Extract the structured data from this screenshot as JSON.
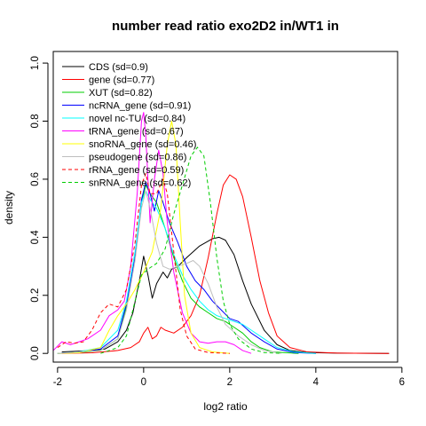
{
  "chart_data": {
    "type": "line",
    "title": "number read ratio exo2D2 in/WT1 in",
    "xlabel": "log2 ratio",
    "ylabel": "density",
    "xlim": [
      -2.1,
      5.9
    ],
    "ylim": [
      -0.03,
      1.04
    ],
    "xticks": [
      -2,
      0,
      2,
      4,
      6
    ],
    "yticks": [
      0.0,
      0.2,
      0.4,
      0.6,
      0.8,
      1.0
    ],
    "tick_labels_x": [
      "-2",
      "0",
      "2",
      "4",
      "6"
    ],
    "tick_labels_y": [
      "0.0",
      "0.2",
      "0.4",
      "0.6",
      "0.8",
      "1.0"
    ],
    "legend_position": "top-left",
    "series": [
      {
        "name": "CDS (sd=0.9)",
        "color": "#000000",
        "dash": "solid",
        "points": [
          [
            -1.9,
            0.005
          ],
          [
            -1.5,
            0.008
          ],
          [
            -1.2,
            0.01
          ],
          [
            -0.9,
            0.015
          ],
          [
            -0.6,
            0.04
          ],
          [
            -0.4,
            0.08
          ],
          [
            -0.25,
            0.14
          ],
          [
            -0.1,
            0.25
          ],
          [
            0,
            0.335
          ],
          [
            0.1,
            0.27
          ],
          [
            0.2,
            0.19
          ],
          [
            0.3,
            0.24
          ],
          [
            0.45,
            0.28
          ],
          [
            0.55,
            0.26
          ],
          [
            0.65,
            0.29
          ],
          [
            0.8,
            0.3
          ],
          [
            1.0,
            0.33
          ],
          [
            1.3,
            0.37
          ],
          [
            1.6,
            0.395
          ],
          [
            1.75,
            0.4
          ],
          [
            1.9,
            0.39
          ],
          [
            2.1,
            0.34
          ],
          [
            2.3,
            0.25
          ],
          [
            2.5,
            0.17
          ],
          [
            2.8,
            0.08
          ],
          [
            3.1,
            0.03
          ],
          [
            3.4,
            0.01
          ],
          [
            3.8,
            0.003
          ],
          [
            4.5,
            0.001
          ],
          [
            5.7,
            0.0
          ]
        ]
      },
      {
        "name": "gene (sd=0.77)",
        "color": "#ff0000",
        "dash": "solid",
        "points": [
          [
            -1.9,
            0.0
          ],
          [
            -1.2,
            0.002
          ],
          [
            -0.6,
            0.01
          ],
          [
            -0.3,
            0.02
          ],
          [
            -0.1,
            0.04
          ],
          [
            0,
            0.07
          ],
          [
            0.1,
            0.09
          ],
          [
            0.2,
            0.05
          ],
          [
            0.3,
            0.06
          ],
          [
            0.4,
            0.09
          ],
          [
            0.5,
            0.08
          ],
          [
            0.7,
            0.07
          ],
          [
            0.9,
            0.09
          ],
          [
            1.1,
            0.13
          ],
          [
            1.3,
            0.2
          ],
          [
            1.5,
            0.33
          ],
          [
            1.7,
            0.48
          ],
          [
            1.85,
            0.58
          ],
          [
            2.0,
            0.615
          ],
          [
            2.15,
            0.6
          ],
          [
            2.3,
            0.54
          ],
          [
            2.5,
            0.4
          ],
          [
            2.7,
            0.25
          ],
          [
            2.9,
            0.14
          ],
          [
            3.1,
            0.06
          ],
          [
            3.4,
            0.02
          ],
          [
            3.8,
            0.005
          ],
          [
            4.5,
            0.001
          ],
          [
            5.7,
            0.0
          ]
        ]
      },
      {
        "name": "XUT (sd=0.82)",
        "color": "#00cd00",
        "dash": "solid",
        "points": [
          [
            -2.0,
            0.0
          ],
          [
            -1.5,
            0.003
          ],
          [
            -1.0,
            0.01
          ],
          [
            -0.6,
            0.05
          ],
          [
            -0.4,
            0.16
          ],
          [
            -0.2,
            0.33
          ],
          [
            -0.05,
            0.52
          ],
          [
            0.05,
            0.58
          ],
          [
            0.15,
            0.55
          ],
          [
            0.3,
            0.52
          ],
          [
            0.5,
            0.43
          ],
          [
            0.7,
            0.33
          ],
          [
            0.9,
            0.25
          ],
          [
            1.1,
            0.19
          ],
          [
            1.3,
            0.16
          ],
          [
            1.5,
            0.14
          ],
          [
            1.7,
            0.12
          ],
          [
            1.9,
            0.11
          ],
          [
            2.1,
            0.09
          ],
          [
            2.3,
            0.07
          ],
          [
            2.5,
            0.04
          ],
          [
            2.7,
            0.02
          ],
          [
            3.0,
            0.005
          ],
          [
            3.6,
            0.0
          ]
        ]
      },
      {
        "name": "ncRNA_gene (sd=0.91)",
        "color": "#0000ff",
        "dash": "solid",
        "points": [
          [
            -2.0,
            0.0
          ],
          [
            -1.5,
            0.005
          ],
          [
            -1.0,
            0.015
          ],
          [
            -0.6,
            0.06
          ],
          [
            -0.4,
            0.17
          ],
          [
            -0.2,
            0.33
          ],
          [
            -0.05,
            0.53
          ],
          [
            0.05,
            0.59
          ],
          [
            0.15,
            0.55
          ],
          [
            0.25,
            0.49
          ],
          [
            0.35,
            0.56
          ],
          [
            0.45,
            0.52
          ],
          [
            0.6,
            0.45
          ],
          [
            0.8,
            0.38
          ],
          [
            1.0,
            0.3
          ],
          [
            1.2,
            0.25
          ],
          [
            1.4,
            0.22
          ],
          [
            1.6,
            0.18
          ],
          [
            1.8,
            0.15
          ],
          [
            2.0,
            0.12
          ],
          [
            2.2,
            0.11
          ],
          [
            2.5,
            0.07
          ],
          [
            2.8,
            0.04
          ],
          [
            3.1,
            0.015
          ],
          [
            3.5,
            0.003
          ],
          [
            4.0,
            0.0
          ]
        ]
      },
      {
        "name": "novel nc-TU (sd=0.84)",
        "color": "#00ffff",
        "dash": "solid",
        "points": [
          [
            -2.0,
            0.0
          ],
          [
            -1.5,
            0.005
          ],
          [
            -1.0,
            0.02
          ],
          [
            -0.6,
            0.08
          ],
          [
            -0.4,
            0.18
          ],
          [
            -0.2,
            0.35
          ],
          [
            -0.05,
            0.52
          ],
          [
            0.05,
            0.56
          ],
          [
            0.15,
            0.53
          ],
          [
            0.3,
            0.5
          ],
          [
            0.5,
            0.43
          ],
          [
            0.7,
            0.34
          ],
          [
            0.9,
            0.27
          ],
          [
            1.1,
            0.22
          ],
          [
            1.3,
            0.18
          ],
          [
            1.5,
            0.15
          ],
          [
            1.7,
            0.13
          ],
          [
            1.9,
            0.12
          ],
          [
            2.1,
            0.11
          ],
          [
            2.3,
            0.1
          ],
          [
            2.5,
            0.08
          ],
          [
            2.8,
            0.05
          ],
          [
            3.1,
            0.02
          ],
          [
            3.5,
            0.005
          ],
          [
            4.0,
            0.0
          ]
        ]
      },
      {
        "name": "tRNA_gene (sd=0.67)",
        "color": "#ff00ff",
        "dash": "solid",
        "points": [
          [
            -2.1,
            0.01
          ],
          [
            -1.9,
            0.04
          ],
          [
            -1.7,
            0.03
          ],
          [
            -1.5,
            0.04
          ],
          [
            -1.3,
            0.05
          ],
          [
            -1.0,
            0.08
          ],
          [
            -0.8,
            0.13
          ],
          [
            -0.6,
            0.15
          ],
          [
            -0.45,
            0.18
          ],
          [
            -0.3,
            0.3
          ],
          [
            -0.15,
            0.55
          ],
          [
            -0.05,
            0.8
          ],
          [
            0.0,
            0.83
          ],
          [
            0.05,
            0.75
          ],
          [
            0.15,
            0.45
          ],
          [
            0.25,
            0.6
          ],
          [
            0.35,
            0.7
          ],
          [
            0.45,
            0.62
          ],
          [
            0.55,
            0.45
          ],
          [
            0.7,
            0.28
          ],
          [
            0.9,
            0.14
          ],
          [
            1.1,
            0.07
          ],
          [
            1.3,
            0.04
          ],
          [
            1.5,
            0.035
          ],
          [
            1.7,
            0.04
          ],
          [
            1.9,
            0.04
          ],
          [
            2.1,
            0.03
          ],
          [
            2.3,
            0.01
          ],
          [
            2.5,
            0.0
          ]
        ]
      },
      {
        "name": "snoRNA_gene (sd=0.46)",
        "color": "#ffff00",
        "dash": "solid",
        "points": [
          [
            -2.0,
            0.0
          ],
          [
            -1.5,
            0.002
          ],
          [
            -1.0,
            0.02
          ],
          [
            -0.8,
            0.08
          ],
          [
            -0.6,
            0.13
          ],
          [
            -0.4,
            0.17
          ],
          [
            -0.2,
            0.22
          ],
          [
            0.0,
            0.28
          ],
          [
            0.2,
            0.35
          ],
          [
            0.4,
            0.5
          ],
          [
            0.55,
            0.72
          ],
          [
            0.65,
            0.8
          ],
          [
            0.75,
            0.72
          ],
          [
            0.85,
            0.45
          ],
          [
            0.95,
            0.2
          ],
          [
            1.1,
            0.07
          ],
          [
            1.3,
            0.02
          ],
          [
            1.6,
            0.005
          ],
          [
            2.0,
            0.0
          ]
        ]
      },
      {
        "name": "pseudogene (sd=0.86)",
        "color": "#bebebe",
        "dash": "solid",
        "points": [
          [
            -2.0,
            0.0
          ],
          [
            -1.0,
            0.01
          ],
          [
            -0.6,
            0.05
          ],
          [
            -0.4,
            0.15
          ],
          [
            -0.2,
            0.32
          ],
          [
            -0.05,
            0.5
          ],
          [
            0.05,
            0.56
          ],
          [
            0.15,
            0.5
          ],
          [
            0.3,
            0.38
          ],
          [
            0.45,
            0.3
          ],
          [
            0.6,
            0.29
          ],
          [
            0.8,
            0.3
          ],
          [
            1.0,
            0.31
          ],
          [
            1.15,
            0.32
          ],
          [
            1.3,
            0.3
          ],
          [
            1.5,
            0.24
          ],
          [
            1.7,
            0.16
          ],
          [
            1.9,
            0.1
          ],
          [
            2.2,
            0.06
          ],
          [
            2.5,
            0.03
          ],
          [
            2.8,
            0.01
          ],
          [
            3.2,
            0.0
          ]
        ]
      },
      {
        "name": "rRNA_gene (sd=0.59)",
        "color": "#ff0000",
        "dash": "dashed",
        "points": [
          [
            -2.0,
            0.02
          ],
          [
            -1.8,
            0.04
          ],
          [
            -1.6,
            0.035
          ],
          [
            -1.4,
            0.04
          ],
          [
            -1.2,
            0.08
          ],
          [
            -1.0,
            0.14
          ],
          [
            -0.8,
            0.17
          ],
          [
            -0.6,
            0.16
          ],
          [
            -0.4,
            0.22
          ],
          [
            -0.2,
            0.38
          ],
          [
            -0.05,
            0.58
          ],
          [
            0.05,
            0.62
          ],
          [
            0.15,
            0.55
          ],
          [
            0.3,
            0.55
          ],
          [
            0.45,
            0.6
          ],
          [
            0.55,
            0.55
          ],
          [
            0.7,
            0.35
          ],
          [
            0.85,
            0.15
          ],
          [
            1.0,
            0.06
          ],
          [
            1.2,
            0.015
          ],
          [
            1.5,
            0.003
          ],
          [
            2.0,
            0.0
          ]
        ]
      },
      {
        "name": "snRNA_gene (sd=0.62)",
        "color": "#00cd00",
        "dash": "dashed",
        "points": [
          [
            -1.0,
            0.0
          ],
          [
            -0.6,
            0.02
          ],
          [
            -0.4,
            0.06
          ],
          [
            -0.2,
            0.18
          ],
          [
            -0.05,
            0.27
          ],
          [
            0.1,
            0.29
          ],
          [
            0.3,
            0.31
          ],
          [
            0.5,
            0.36
          ],
          [
            0.7,
            0.48
          ],
          [
            0.9,
            0.58
          ],
          [
            1.1,
            0.68
          ],
          [
            1.25,
            0.71
          ],
          [
            1.4,
            0.68
          ],
          [
            1.55,
            0.52
          ],
          [
            1.7,
            0.33
          ],
          [
            1.85,
            0.18
          ],
          [
            2.0,
            0.1
          ],
          [
            2.2,
            0.05
          ],
          [
            2.5,
            0.015
          ],
          [
            2.8,
            0.003
          ],
          [
            3.2,
            0.0
          ]
        ]
      }
    ]
  }
}
